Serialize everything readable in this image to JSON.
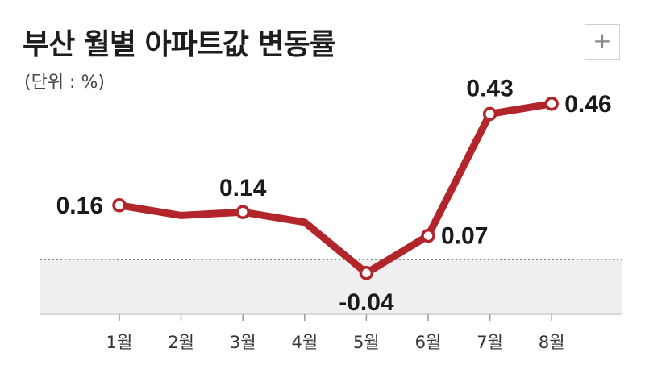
{
  "chart_data": {
    "type": "line",
    "title": "부산 월별 아파트값 변동률",
    "subtitle": "(단위 : %)",
    "categories": [
      "1월",
      "2월",
      "3월",
      "4월",
      "5월",
      "6월",
      "7월",
      "8월"
    ],
    "series": [
      {
        "values": [
          0.16,
          0.13,
          0.14,
          0.11,
          -0.04,
          0.07,
          0.43,
          0.46
        ]
      }
    ],
    "labels": [
      {
        "index": 0,
        "text": "0.16"
      },
      {
        "index": 2,
        "text": "0.14"
      },
      {
        "index": 4,
        "text": "-0.04"
      },
      {
        "index": 5,
        "text": "0.07"
      },
      {
        "index": 6,
        "text": "0.43"
      },
      {
        "index": 7,
        "text": "0.46"
      }
    ],
    "ylim": [
      -0.1,
      0.5
    ],
    "colors": {
      "line": "#b2262b",
      "negative_band": "#efefef"
    }
  },
  "zoom_button": "+"
}
